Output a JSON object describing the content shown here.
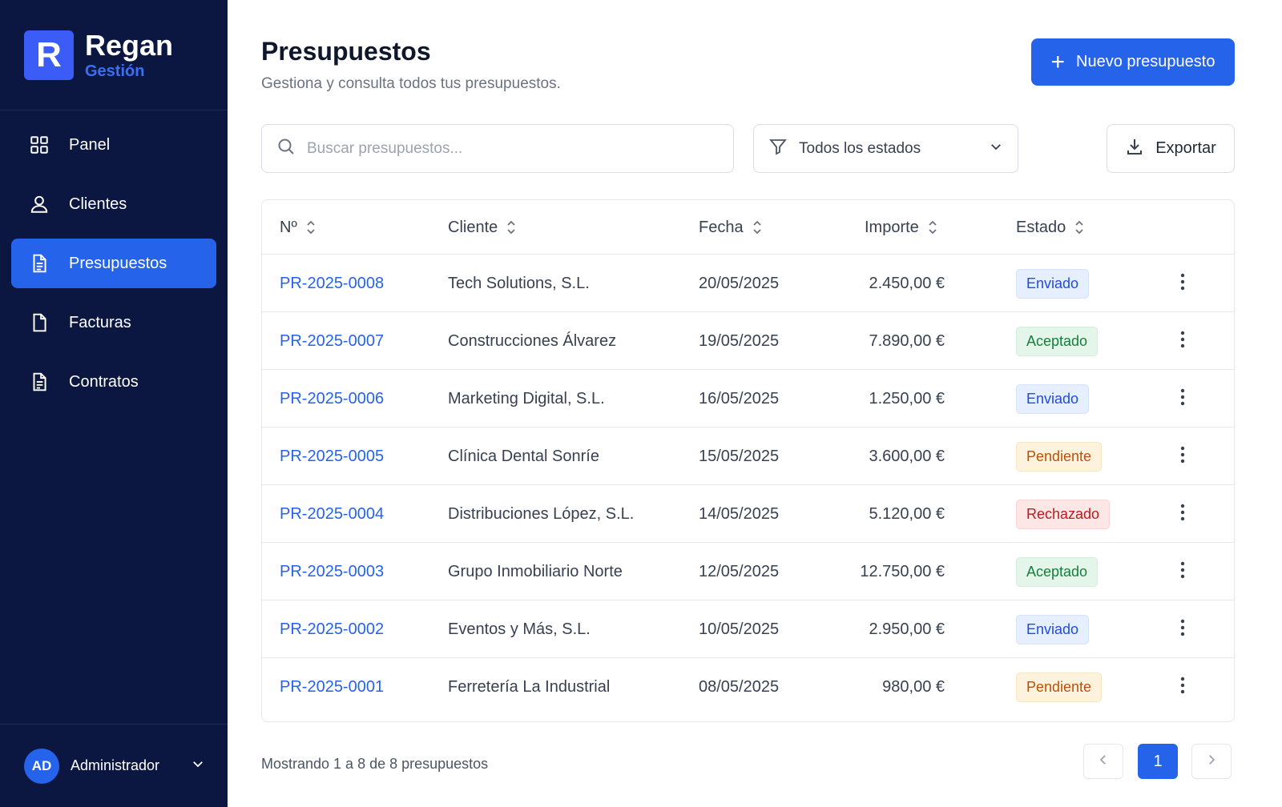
{
  "app": {
    "logo_letter": "R",
    "name": "Regan",
    "subtitle": "Gestión"
  },
  "sidebar": {
    "items": [
      {
        "label": "Panel",
        "icon": "grid-icon",
        "active": false
      },
      {
        "label": "Clientes",
        "icon": "user-icon",
        "active": false
      },
      {
        "label": "Presupuestos",
        "icon": "document-icon",
        "active": true
      },
      {
        "label": "Facturas",
        "icon": "file-icon",
        "active": false
      },
      {
        "label": "Contratos",
        "icon": "contract-icon",
        "active": false
      }
    ],
    "user": {
      "initials": "AD",
      "name": "Administrador"
    }
  },
  "header": {
    "title": "Presupuestos",
    "subtitle": "Gestiona y consulta todos tus presupuestos.",
    "new_button": "Nuevo presupuesto"
  },
  "toolbar": {
    "search_placeholder": "Buscar presupuestos...",
    "filter_label": "Todos los estados",
    "export_label": "Exportar"
  },
  "table": {
    "columns": [
      "Nº",
      "Cliente",
      "Fecha",
      "Importe",
      "Estado"
    ],
    "rows": [
      {
        "num": "PR-2025-0008",
        "cliente": "Tech Solutions, S.L.",
        "fecha": "20/05/2025",
        "importe": "2.450,00 €",
        "estado": "Enviado",
        "estado_key": "enviado"
      },
      {
        "num": "PR-2025-0007",
        "cliente": "Construcciones Álvarez",
        "fecha": "19/05/2025",
        "importe": "7.890,00 €",
        "estado": "Aceptado",
        "estado_key": "aceptado"
      },
      {
        "num": "PR-2025-0006",
        "cliente": "Marketing Digital, S.L.",
        "fecha": "16/05/2025",
        "importe": "1.250,00 €",
        "estado": "Enviado",
        "estado_key": "enviado"
      },
      {
        "num": "PR-2025-0005",
        "cliente": "Clínica Dental Sonríe",
        "fecha": "15/05/2025",
        "importe": "3.600,00 €",
        "estado": "Pendiente",
        "estado_key": "pendiente"
      },
      {
        "num": "PR-2025-0004",
        "cliente": "Distribuciones López, S.L.",
        "fecha": "14/05/2025",
        "importe": "5.120,00 €",
        "estado": "Rechazado",
        "estado_key": "rechazado"
      },
      {
        "num": "PR-2025-0003",
        "cliente": "Grupo Inmobiliario Norte",
        "fecha": "12/05/2025",
        "importe": "12.750,00 €",
        "estado": "Aceptado",
        "estado_key": "aceptado"
      },
      {
        "num": "PR-2025-0002",
        "cliente": "Eventos y Más, S.L.",
        "fecha": "10/05/2025",
        "importe": "2.950,00 €",
        "estado": "Enviado",
        "estado_key": "enviado"
      },
      {
        "num": "PR-2025-0001",
        "cliente": "Ferretería La Industrial",
        "fecha": "08/05/2025",
        "importe": "980,00 €",
        "estado": "Pendiente",
        "estado_key": "pendiente"
      }
    ]
  },
  "footer": {
    "showing": "Mostrando 1 a 8 de 8 presupuestos",
    "current_page": "1"
  },
  "colors": {
    "sidebar_bg": "#0b1741",
    "accent": "#2563eb",
    "enviado": "#1d4ed8",
    "aceptado": "#15803d",
    "pendiente": "#b45309",
    "rechazado": "#b91c1c"
  }
}
